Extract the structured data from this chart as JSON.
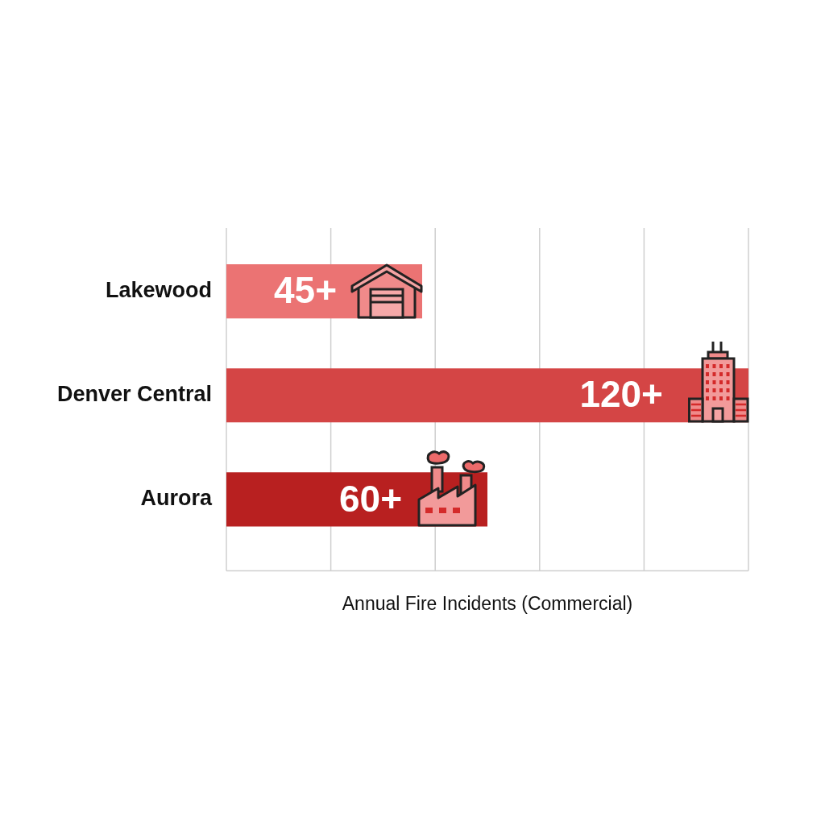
{
  "chart_data": {
    "type": "bar",
    "orientation": "horizontal",
    "categories": [
      "Lakewood",
      "Denver Central",
      "Aurora"
    ],
    "values": [
      45,
      120,
      60
    ],
    "colors": [
      "#eb7373",
      "#d44545",
      "#b82020"
    ],
    "value_labels": [
      "45+",
      "120+",
      "60+"
    ],
    "xlim": [
      0,
      120
    ],
    "tick_labels": "y",
    "xlabel": "Annual Fire Incidents (Commercial)",
    "grid": "x"
  }
}
